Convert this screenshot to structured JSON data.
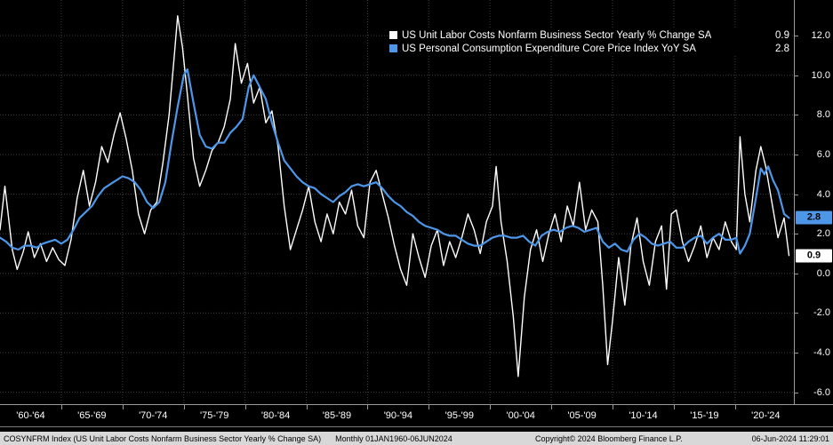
{
  "legend": {
    "series": [
      {
        "label": "US Unit Labor Costs Nonfarm Business Sector Yearly % Change SA",
        "value": "0.9",
        "color": "#ffffff"
      },
      {
        "label": "US Personal Consumption Expenditure Core Price Index YoY SA",
        "value": "2.8",
        "color": "#4e96e8"
      }
    ]
  },
  "y_axis": {
    "ticks": [
      {
        "label": "12.0",
        "value": 12
      },
      {
        "label": "10.0",
        "value": 10
      },
      {
        "label": "8.0",
        "value": 8
      },
      {
        "label": "6.0",
        "value": 6
      },
      {
        "label": "4.0",
        "value": 4
      },
      {
        "label": "2.0",
        "value": 2
      },
      {
        "label": "0.0",
        "value": 0
      },
      {
        "label": "-2.0",
        "value": -2
      },
      {
        "label": "-4.0",
        "value": -4
      },
      {
        "label": "-6.0",
        "value": -6
      }
    ],
    "badges": [
      {
        "label": "2.8",
        "value": 2.8,
        "bg": "#4e96e8",
        "fg": "#000000",
        "name": "pce-last-value-badge"
      },
      {
        "label": "0.9",
        "value": 0.9,
        "bg": "#ffffff",
        "fg": "#000000",
        "name": "ulc-last-value-badge"
      }
    ]
  },
  "x_axis": {
    "labels": [
      "'60-'64",
      "'65-'69",
      "'70-'74",
      "'75-'79",
      "'80-'84",
      "'85-'89",
      "'90-'94",
      "'95-'99",
      "'00-'04",
      "'05-'09",
      "'10-'14",
      "'15-'19",
      "'20-'24"
    ],
    "start_year": 1960,
    "span": 5
  },
  "status_bar": {
    "instrument": "COSYNFRM Index (US Unit Labor Costs Nonfarm Business Sector Yearly % Change SA)",
    "periodicity": "Monthly 01JAN1960-06JUN2024",
    "copyright": "Copyright© 2024 Bloomberg Finance L.P.",
    "datetime": "06-Jun-2024 11:29:01"
  },
  "chart_data": {
    "type": "line",
    "title": "",
    "xlabel": "",
    "ylabel": "",
    "x_unit": "year",
    "xlim": [
      1960,
      2024.8
    ],
    "ylim": [
      -6.6,
      13.8
    ],
    "yticks": [
      -6,
      -4,
      -2,
      0,
      2,
      4,
      6,
      8,
      10,
      12
    ],
    "xticks": [
      1965,
      1970,
      1975,
      1980,
      1985,
      1990,
      1995,
      2000,
      2005,
      2010,
      2015,
      2020
    ],
    "grid": true,
    "legend_position": "top-right",
    "series": [
      {
        "id": "ulc-series",
        "name": "US Unit Labor Costs Nonfarm Business Sector Yearly % Change SA",
        "color": "#ffffff",
        "stroke_width": 1.4,
        "last_value": 0.9,
        "points": [
          [
            1960.0,
            2.2
          ],
          [
            1960.4,
            4.4
          ],
          [
            1961.0,
            1.2
          ],
          [
            1961.4,
            0.2
          ],
          [
            1961.9,
            1.1
          ],
          [
            1962.3,
            2.1
          ],
          [
            1962.8,
            0.8
          ],
          [
            1963.3,
            1.5
          ],
          [
            1963.8,
            0.6
          ],
          [
            1964.3,
            1.3
          ],
          [
            1964.8,
            0.7
          ],
          [
            1965.3,
            0.4
          ],
          [
            1965.8,
            1.7
          ],
          [
            1966.3,
            3.8
          ],
          [
            1966.8,
            5.2
          ],
          [
            1967.3,
            3.4
          ],
          [
            1967.8,
            4.6
          ],
          [
            1968.3,
            6.4
          ],
          [
            1968.8,
            5.6
          ],
          [
            1969.3,
            7.0
          ],
          [
            1969.8,
            8.1
          ],
          [
            1970.3,
            6.8
          ],
          [
            1970.8,
            5.2
          ],
          [
            1971.3,
            3.0
          ],
          [
            1971.8,
            2.0
          ],
          [
            1972.3,
            3.2
          ],
          [
            1972.8,
            3.6
          ],
          [
            1973.3,
            5.6
          ],
          [
            1973.8,
            8.0
          ],
          [
            1974.2,
            10.8
          ],
          [
            1974.5,
            13.0
          ],
          [
            1974.9,
            11.4
          ],
          [
            1975.3,
            9.0
          ],
          [
            1975.8,
            5.8
          ],
          [
            1976.3,
            4.4
          ],
          [
            1976.8,
            5.2
          ],
          [
            1977.3,
            6.2
          ],
          [
            1977.8,
            6.6
          ],
          [
            1978.3,
            7.4
          ],
          [
            1978.8,
            8.8
          ],
          [
            1979.2,
            11.6
          ],
          [
            1979.7,
            9.6
          ],
          [
            1980.2,
            10.6
          ],
          [
            1980.7,
            8.6
          ],
          [
            1981.2,
            9.4
          ],
          [
            1981.7,
            7.6
          ],
          [
            1982.2,
            8.2
          ],
          [
            1982.7,
            6.4
          ],
          [
            1983.2,
            3.4
          ],
          [
            1983.7,
            1.2
          ],
          [
            1984.2,
            2.2
          ],
          [
            1984.7,
            3.2
          ],
          [
            1985.2,
            4.4
          ],
          [
            1985.7,
            2.6
          ],
          [
            1986.2,
            1.6
          ],
          [
            1986.7,
            3.0
          ],
          [
            1987.2,
            2.0
          ],
          [
            1987.7,
            3.6
          ],
          [
            1988.2,
            3.0
          ],
          [
            1988.7,
            4.2
          ],
          [
            1989.2,
            2.4
          ],
          [
            1989.7,
            1.8
          ],
          [
            1990.2,
            4.6
          ],
          [
            1990.7,
            5.2
          ],
          [
            1991.2,
            4.0
          ],
          [
            1991.7,
            2.8
          ],
          [
            1992.2,
            1.4
          ],
          [
            1992.7,
            0.2
          ],
          [
            1993.2,
            -0.6
          ],
          [
            1993.7,
            2.0
          ],
          [
            1994.2,
            0.8
          ],
          [
            1994.7,
            -0.2
          ],
          [
            1995.2,
            1.4
          ],
          [
            1995.7,
            2.2
          ],
          [
            1996.2,
            0.4
          ],
          [
            1996.7,
            1.6
          ],
          [
            1997.2,
            0.8
          ],
          [
            1997.7,
            1.8
          ],
          [
            1998.2,
            3.0
          ],
          [
            1998.7,
            2.2
          ],
          [
            1999.2,
            1.0
          ],
          [
            1999.7,
            2.6
          ],
          [
            2000.2,
            3.4
          ],
          [
            2000.5,
            5.4
          ],
          [
            2000.9,
            2.6
          ],
          [
            2001.4,
            0.6
          ],
          [
            2001.9,
            -2.2
          ],
          [
            2002.3,
            -5.2
          ],
          [
            2002.8,
            -1.2
          ],
          [
            2003.3,
            1.2
          ],
          [
            2003.8,
            2.2
          ],
          [
            2004.3,
            0.6
          ],
          [
            2004.8,
            2.0
          ],
          [
            2005.3,
            3.0
          ],
          [
            2005.8,
            1.6
          ],
          [
            2006.3,
            3.4
          ],
          [
            2006.8,
            2.4
          ],
          [
            2007.3,
            4.6
          ],
          [
            2007.8,
            2.2
          ],
          [
            2008.3,
            3.2
          ],
          [
            2008.8,
            2.6
          ],
          [
            2009.2,
            -0.6
          ],
          [
            2009.6,
            -4.6
          ],
          [
            2010.0,
            -2.4
          ],
          [
            2010.5,
            0.8
          ],
          [
            2011.0,
            -1.6
          ],
          [
            2011.5,
            1.4
          ],
          [
            2012.0,
            2.8
          ],
          [
            2012.5,
            0.6
          ],
          [
            2013.0,
            -0.6
          ],
          [
            2013.5,
            1.6
          ],
          [
            2014.0,
            2.4
          ],
          [
            2014.4,
            -0.8
          ],
          [
            2014.8,
            3.0
          ],
          [
            2015.2,
            3.2
          ],
          [
            2015.7,
            1.6
          ],
          [
            2016.2,
            0.6
          ],
          [
            2016.7,
            1.4
          ],
          [
            2017.2,
            2.4
          ],
          [
            2017.7,
            0.8
          ],
          [
            2018.2,
            1.8
          ],
          [
            2018.7,
            1.2
          ],
          [
            2019.2,
            2.6
          ],
          [
            2019.7,
            1.6
          ],
          [
            2020.1,
            1.2
          ],
          [
            2020.4,
            6.9
          ],
          [
            2020.8,
            4.0
          ],
          [
            2021.2,
            2.6
          ],
          [
            2021.7,
            5.2
          ],
          [
            2022.1,
            6.4
          ],
          [
            2022.5,
            5.4
          ],
          [
            2023.0,
            3.6
          ],
          [
            2023.5,
            1.8
          ],
          [
            2024.0,
            2.8
          ],
          [
            2024.4,
            0.9
          ]
        ]
      },
      {
        "id": "pce-series",
        "name": "US Personal Consumption Expenditure Core Price Index YoY SA",
        "color": "#4e96e8",
        "stroke_width": 2.2,
        "last_value": 2.8,
        "points": [
          [
            1960.0,
            1.8
          ],
          [
            1960.5,
            1.6
          ],
          [
            1961.0,
            1.3
          ],
          [
            1961.5,
            1.2
          ],
          [
            1962.0,
            1.4
          ],
          [
            1962.5,
            1.4
          ],
          [
            1963.0,
            1.3
          ],
          [
            1963.5,
            1.5
          ],
          [
            1964.0,
            1.6
          ],
          [
            1964.5,
            1.7
          ],
          [
            1965.0,
            1.5
          ],
          [
            1965.5,
            1.7
          ],
          [
            1966.0,
            2.2
          ],
          [
            1966.5,
            2.8
          ],
          [
            1967.0,
            3.1
          ],
          [
            1967.5,
            3.4
          ],
          [
            1968.0,
            3.9
          ],
          [
            1968.5,
            4.3
          ],
          [
            1969.0,
            4.5
          ],
          [
            1969.5,
            4.7
          ],
          [
            1970.0,
            4.9
          ],
          [
            1970.5,
            4.8
          ],
          [
            1971.0,
            4.6
          ],
          [
            1971.5,
            4.2
          ],
          [
            1972.0,
            3.6
          ],
          [
            1972.5,
            3.3
          ],
          [
            1973.0,
            3.6
          ],
          [
            1973.5,
            4.6
          ],
          [
            1974.0,
            6.6
          ],
          [
            1974.5,
            8.4
          ],
          [
            1975.0,
            10.0
          ],
          [
            1975.3,
            10.3
          ],
          [
            1975.8,
            8.6
          ],
          [
            1976.3,
            7.0
          ],
          [
            1976.8,
            6.4
          ],
          [
            1977.3,
            6.3
          ],
          [
            1977.8,
            6.6
          ],
          [
            1978.3,
            6.6
          ],
          [
            1978.8,
            7.1
          ],
          [
            1979.3,
            7.4
          ],
          [
            1979.8,
            7.8
          ],
          [
            1980.3,
            9.4
          ],
          [
            1980.7,
            10.0
          ],
          [
            1981.2,
            9.4
          ],
          [
            1981.7,
            8.8
          ],
          [
            1982.2,
            7.6
          ],
          [
            1982.7,
            6.6
          ],
          [
            1983.2,
            5.7
          ],
          [
            1983.7,
            5.3
          ],
          [
            1984.2,
            4.9
          ],
          [
            1984.7,
            4.6
          ],
          [
            1985.2,
            4.4
          ],
          [
            1985.7,
            4.3
          ],
          [
            1986.2,
            4.0
          ],
          [
            1986.7,
            3.8
          ],
          [
            1987.2,
            3.6
          ],
          [
            1987.7,
            3.9
          ],
          [
            1988.2,
            4.1
          ],
          [
            1988.7,
            4.4
          ],
          [
            1989.2,
            4.5
          ],
          [
            1989.7,
            4.4
          ],
          [
            1990.2,
            4.5
          ],
          [
            1990.7,
            4.6
          ],
          [
            1991.2,
            4.3
          ],
          [
            1991.7,
            3.9
          ],
          [
            1992.2,
            3.6
          ],
          [
            1992.7,
            3.4
          ],
          [
            1993.2,
            3.1
          ],
          [
            1993.7,
            2.9
          ],
          [
            1994.2,
            2.6
          ],
          [
            1994.7,
            2.4
          ],
          [
            1995.2,
            2.3
          ],
          [
            1995.7,
            2.2
          ],
          [
            1996.2,
            2.0
          ],
          [
            1996.7,
            1.9
          ],
          [
            1997.2,
            1.9
          ],
          [
            1997.7,
            1.7
          ],
          [
            1998.2,
            1.5
          ],
          [
            1998.7,
            1.4
          ],
          [
            1999.2,
            1.4
          ],
          [
            1999.7,
            1.6
          ],
          [
            2000.2,
            1.8
          ],
          [
            2000.7,
            1.9
          ],
          [
            2001.2,
            1.9
          ],
          [
            2001.7,
            1.8
          ],
          [
            2002.2,
            1.8
          ],
          [
            2002.7,
            1.9
          ],
          [
            2003.2,
            1.6
          ],
          [
            2003.7,
            1.4
          ],
          [
            2004.2,
            1.9
          ],
          [
            2004.7,
            2.1
          ],
          [
            2005.2,
            2.2
          ],
          [
            2005.7,
            2.1
          ],
          [
            2006.2,
            2.3
          ],
          [
            2006.7,
            2.4
          ],
          [
            2007.2,
            2.3
          ],
          [
            2007.7,
            2.1
          ],
          [
            2008.2,
            2.2
          ],
          [
            2008.7,
            2.3
          ],
          [
            2009.2,
            1.6
          ],
          [
            2009.7,
            1.3
          ],
          [
            2010.2,
            1.5
          ],
          [
            2010.7,
            1.2
          ],
          [
            2011.2,
            1.1
          ],
          [
            2011.7,
            1.7
          ],
          [
            2012.2,
            2.0
          ],
          [
            2012.7,
            1.8
          ],
          [
            2013.2,
            1.5
          ],
          [
            2013.7,
            1.4
          ],
          [
            2014.2,
            1.5
          ],
          [
            2014.7,
            1.6
          ],
          [
            2015.2,
            1.3
          ],
          [
            2015.7,
            1.3
          ],
          [
            2016.2,
            1.6
          ],
          [
            2016.7,
            1.8
          ],
          [
            2017.2,
            1.9
          ],
          [
            2017.7,
            1.5
          ],
          [
            2018.2,
            1.8
          ],
          [
            2018.7,
            2.0
          ],
          [
            2019.2,
            1.7
          ],
          [
            2019.7,
            1.7
          ],
          [
            2020.1,
            1.8
          ],
          [
            2020.4,
            1.0
          ],
          [
            2020.8,
            1.4
          ],
          [
            2021.2,
            2.0
          ],
          [
            2021.7,
            3.8
          ],
          [
            2022.1,
            5.3
          ],
          [
            2022.4,
            5.0
          ],
          [
            2022.7,
            5.4
          ],
          [
            2023.1,
            4.7
          ],
          [
            2023.5,
            4.2
          ],
          [
            2024.0,
            3.0
          ],
          [
            2024.4,
            2.8
          ]
        ]
      }
    ]
  }
}
